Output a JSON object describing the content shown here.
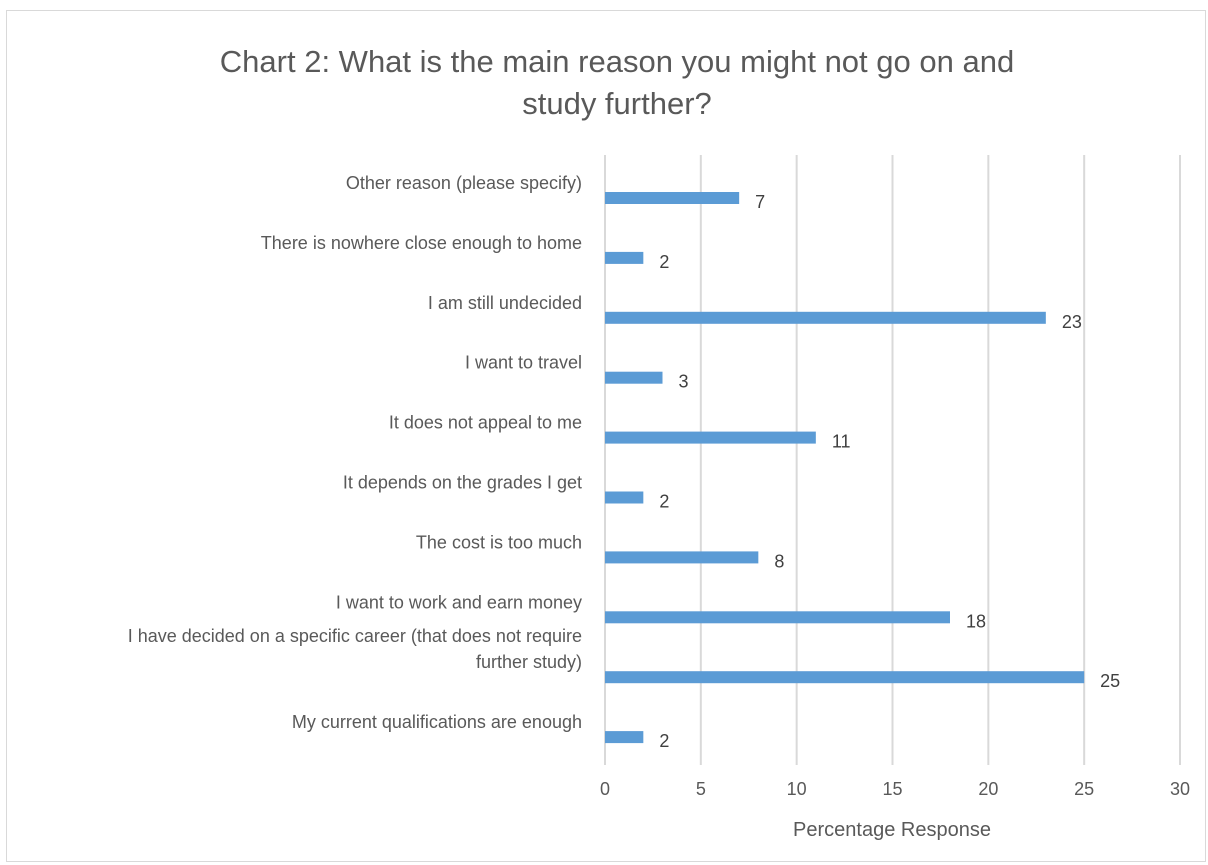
{
  "chart_data": {
    "type": "bar",
    "orientation": "horizontal",
    "title_lines": [
      "Chart 2: What is the main reason you might not go on and",
      "study further?"
    ],
    "categories": [
      [
        "Other reason (please specify)"
      ],
      [
        "There is nowhere close enough to home"
      ],
      [
        "I am still undecided"
      ],
      [
        "I want to travel"
      ],
      [
        "It does not appeal to me"
      ],
      [
        "It depends on the grades I get"
      ],
      [
        "The cost is too much"
      ],
      [
        "I want to work and earn money"
      ],
      [
        "I have decided on a specific career (that does not require",
        "further study)"
      ],
      [
        "My current qualifications are enough"
      ]
    ],
    "values": [
      7,
      2,
      23,
      3,
      11,
      2,
      8,
      18,
      25,
      2
    ],
    "xlabel": "Percentage Response",
    "ylabel": "",
    "xlim": [
      0,
      30
    ],
    "xticks": [
      0,
      5,
      10,
      15,
      20,
      25,
      30
    ],
    "grid": "vertical",
    "legend": "none",
    "bar_color": "#5b9bd5",
    "grid_color": "#d9d9d9"
  }
}
